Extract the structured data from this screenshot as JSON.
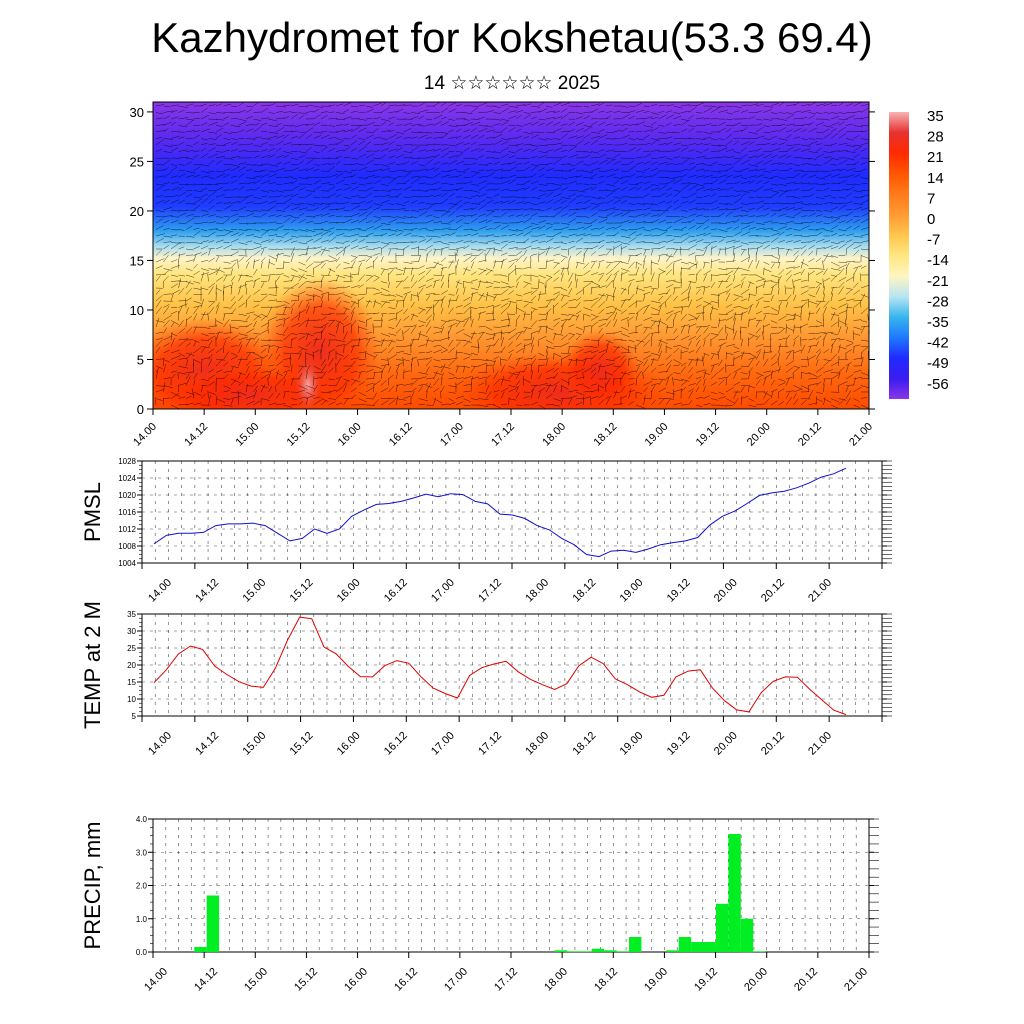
{
  "header": {
    "title": "Kazhydromet for Kokshetau(53.3 69.4)",
    "subtitle": "14 ☆☆☆☆☆☆ 2025"
  },
  "chart_data": [
    {
      "type": "heatmap",
      "name": "temperature cross-section with wind",
      "x_ticks": [
        "14.00",
        "14.12",
        "15.00",
        "15.12",
        "16.00",
        "16.12",
        "17.00",
        "17.12",
        "18.00",
        "18.12",
        "19.00",
        "19.12",
        "20.00",
        "20.12",
        "21.00"
      ],
      "ylim": [
        0,
        31
      ],
      "y_ticks": [
        0,
        5,
        10,
        15,
        20,
        25,
        30
      ],
      "colorbar_labels": [
        35,
        28,
        21,
        14,
        7,
        0,
        -7,
        -14,
        -21,
        -28,
        -35,
        -42,
        -49,
        -56
      ],
      "colorbar_colors": [
        "#f7b3b3",
        "#e63232",
        "#ff2a00",
        "#ff5500",
        "#ff7a1a",
        "#ff9a33",
        "#ffc64d",
        "#ffe680",
        "#fff6c0",
        "#b8e4f2",
        "#38b6ee",
        "#1f78ff",
        "#1f2bff",
        "#3b1cf0",
        "#8a36e8"
      ],
      "grid": false
    },
    {
      "type": "line",
      "ylabel": "PMSL",
      "ylim": [
        1004,
        1028
      ],
      "y_ticks": [
        1004,
        1008,
        1012,
        1016,
        1020,
        1024,
        1028
      ],
      "x_ticks": [
        "14.00",
        "14.12",
        "15.00",
        "15.12",
        "16.00",
        "16.12",
        "17.00",
        "17.12",
        "18.00",
        "18.12",
        "19.00",
        "19.12",
        "20.00",
        "20.12",
        "21.00"
      ],
      "color": "#1010cc",
      "grid": true,
      "values": [
        1008.5,
        1010.5,
        1011,
        1011,
        1011.2,
        1012.8,
        1013.2,
        1013.2,
        1013.4,
        1012.8,
        1011,
        1009.2,
        1009.8,
        1012,
        1011,
        1012,
        1015,
        1016.5,
        1017.8,
        1018,
        1018.5,
        1019.3,
        1020.2,
        1019.6,
        1020.3,
        1020.1,
        1018.5,
        1017.9,
        1015.5,
        1015.3,
        1014.5,
        1012.8,
        1011.8,
        1009.8,
        1008.3,
        1006,
        1005.5,
        1006.8,
        1007,
        1006.5,
        1007.3,
        1008.3,
        1008.8,
        1009.2,
        1010,
        1013,
        1015,
        1016.2,
        1018,
        1019.9,
        1020.5,
        1020.9,
        1021.7,
        1022.8,
        1024.2,
        1025,
        1026.3
      ]
    },
    {
      "type": "line",
      "ylabel": "TEMP at 2 M",
      "ylim": [
        5,
        35
      ],
      "y_ticks": [
        5,
        10,
        15,
        20,
        25,
        30,
        35
      ],
      "x_ticks": [
        "14.00",
        "14.12",
        "15.00",
        "15.12",
        "16.00",
        "16.12",
        "17.00",
        "17.12",
        "18.00",
        "18.12",
        "19.00",
        "19.12",
        "20.00",
        "20.12",
        "21.00"
      ],
      "color": "#dd0000",
      "grid": true,
      "values": [
        14.8,
        18.5,
        23.2,
        25.6,
        24.6,
        19.7,
        17.2,
        15.1,
        13.8,
        13.4,
        19.1,
        27.3,
        34.1,
        33.6,
        25.3,
        23.3,
        19.6,
        16.6,
        16.5,
        19.8,
        21.3,
        20.5,
        16.5,
        13.2,
        11.6,
        10.3,
        16.9,
        19.2,
        20.3,
        21.1,
        18,
        15.8,
        14.2,
        12.8,
        14.5,
        19.8,
        22.3,
        20.4,
        15.9,
        14.2,
        12.1,
        10.5,
        11.1,
        16.5,
        18.2,
        18.6,
        13.2,
        9.5,
        6.8,
        6.2,
        11.8,
        15.2,
        16.5,
        16.4,
        12.9,
        9.8,
        6.7,
        5.4
      ]
    },
    {
      "type": "bar",
      "ylabel": "PRECIP, mm",
      "ylim": [
        0,
        4
      ],
      "y_ticks": [
        "0.0",
        "1.0",
        "2.0",
        "3.0",
        "4.0"
      ],
      "x_ticks": [
        "14.00",
        "14.12",
        "15.00",
        "15.12",
        "16.00",
        "16.12",
        "17.00",
        "17.12",
        "18.00",
        "18.12",
        "19.00",
        "19.12",
        "20.00",
        "20.12",
        "21.00"
      ],
      "color": "#00ee22",
      "grid": true,
      "values": [
        0,
        0,
        0,
        0.15,
        1.7,
        0,
        0,
        0,
        0,
        0,
        0,
        0,
        0,
        0,
        0,
        0,
        0,
        0,
        0,
        0,
        0,
        0,
        0,
        0,
        0,
        0,
        0,
        0,
        0,
        0,
        0,
        0,
        0.05,
        0.02,
        0.02,
        0.1,
        0.05,
        0.02,
        0.45,
        0,
        0,
        0.05,
        0.45,
        0.3,
        0.3,
        1.45,
        3.55,
        1.0,
        0.02,
        0,
        0,
        0,
        0,
        0,
        0,
        0,
        0
      ]
    }
  ]
}
